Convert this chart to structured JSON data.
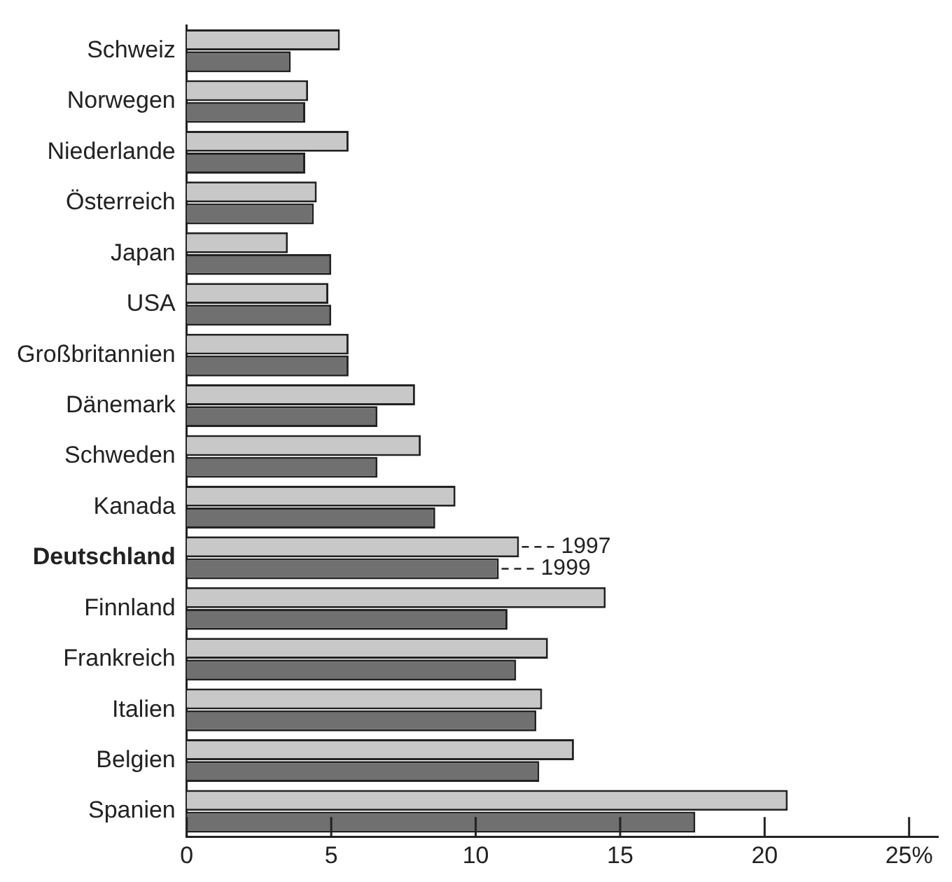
{
  "chart_data": {
    "type": "bar",
    "orientation": "horizontal",
    "categories": [
      "Schweiz",
      "Norwegen",
      "Niederlande",
      "Österreich",
      "Japan",
      "USA",
      "Großbritannien",
      "Dänemark",
      "Schweden",
      "Kanada",
      "Deutschland",
      "Finnland",
      "Frankreich",
      "Italien",
      "Belgien",
      "Spanien"
    ],
    "series": [
      {
        "color": "#c8c8c8",
        "values": [
          5.3,
          4.2,
          5.6,
          4.5,
          3.5,
          4.9,
          5.6,
          7.9,
          8.1,
          9.3,
          11.5,
          14.5,
          12.5,
          12.3,
          13.4,
          20.8
        ]
      },
      {
        "color": "#707070",
        "values": [
          3.6,
          4.1,
          4.1,
          4.4,
          5.0,
          5.0,
          5.6,
          6.6,
          6.6,
          8.6,
          10.8,
          11.1,
          11.4,
          12.1,
          12.2,
          17.6
        ]
      }
    ],
    "xlim": [
      0,
      26
    ],
    "xticks": [
      0,
      5,
      10,
      15,
      20,
      {
        "value": 25,
        "label": "25%"
      }
    ],
    "annotations": [
      {
        "text": "1997",
        "x": 11.5,
        "y": "Deutschland"
      },
      {
        "text": "1999",
        "x": 10.8,
        "y": "Deutschland"
      }
    ],
    "grid": false,
    "legend": false
  }
}
